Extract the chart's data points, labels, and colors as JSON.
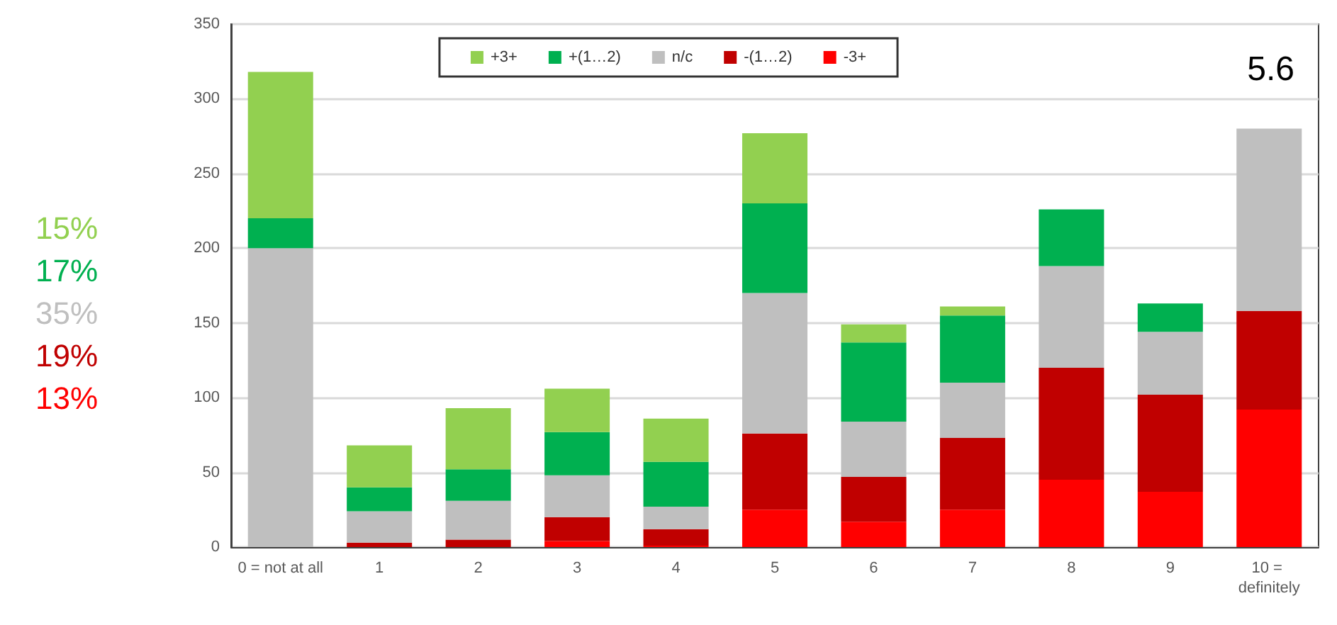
{
  "chart_data": {
    "type": "bar",
    "stacked": true,
    "categories": [
      "0 = not at all",
      "1",
      "2",
      "3",
      "4",
      "5",
      "6",
      "7",
      "8",
      "9",
      "10 = definitely"
    ],
    "series": [
      {
        "name": "-3+",
        "color": "#ff0000",
        "values": [
          0,
          0,
          0,
          4,
          1,
          25,
          17,
          25,
          45,
          37,
          92
        ]
      },
      {
        "name": "-(1…2)",
        "color": "#c00000",
        "values": [
          0,
          3,
          5,
          16,
          11,
          51,
          30,
          48,
          75,
          65,
          66
        ]
      },
      {
        "name": "n/c",
        "color": "#bfbfbf",
        "values": [
          200,
          21,
          26,
          28,
          15,
          94,
          37,
          37,
          68,
          42,
          122
        ]
      },
      {
        "name": "+(1…2)",
        "color": "#00b050",
        "values": [
          20,
          16,
          21,
          29,
          30,
          60,
          53,
          45,
          38,
          19,
          0
        ]
      },
      {
        "name": "+3+",
        "color": "#92d050",
        "values": [
          98,
          28,
          41,
          29,
          29,
          47,
          12,
          6,
          0,
          0,
          0
        ]
      }
    ],
    "ylim": [
      0,
      350
    ],
    "yticks": [
      0,
      50,
      100,
      150,
      200,
      250,
      300,
      350
    ],
    "grid": "y",
    "legend": "top",
    "annotations": [
      "15%",
      "17%",
      "35%",
      "19%",
      "13%",
      "5.6"
    ]
  }
}
